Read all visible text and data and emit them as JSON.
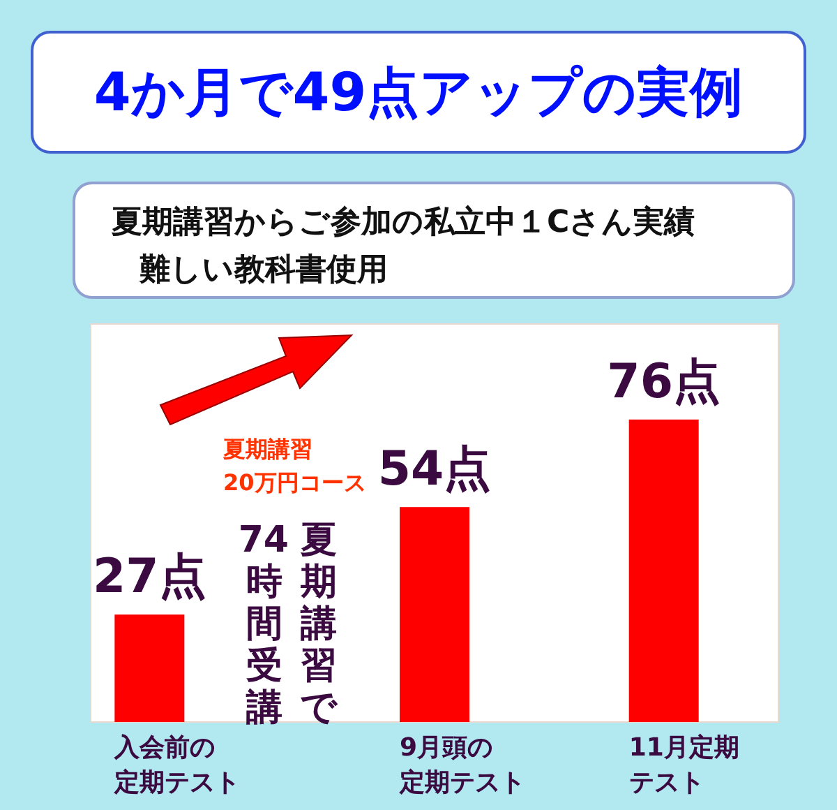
{
  "chart_data": {
    "type": "bar",
    "title": "4か月で49点アップの実例",
    "subtitle": "夏期講習からご参加の私立中１Cさん実績",
    "categories": [
      "入会前の定期テスト",
      "9月頭の定期テスト",
      "11月定期テスト"
    ],
    "values": [
      27,
      54,
      76
    ],
    "value_labels": [
      "27点",
      "54点",
      "76点"
    ],
    "color": "#ff0000",
    "annotations": [
      "難しい教科書使用",
      "夏期講習20万円コース",
      "夏期講習で74時間受講"
    ]
  }
}
